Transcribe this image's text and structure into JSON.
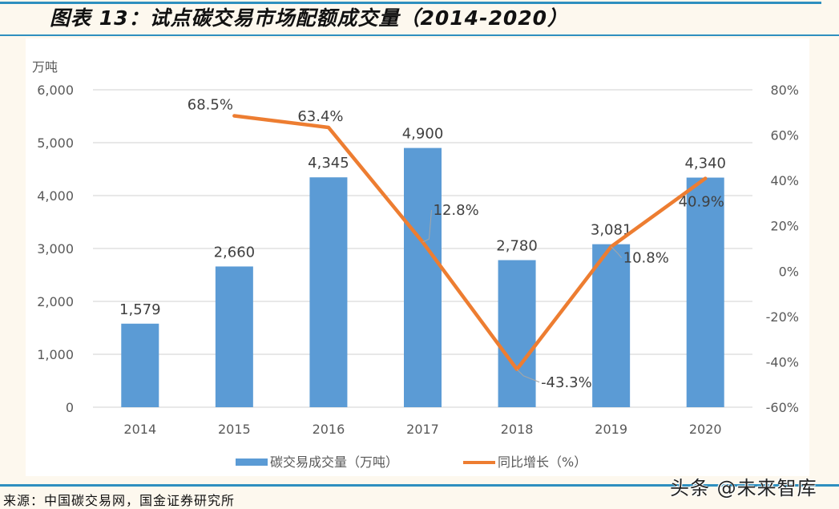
{
  "header": {
    "title": "图表 13：试点碳交易市场配额成交量（2014-2020）"
  },
  "footer": {
    "source": "来源：中国碳交易网，国金证券研究所",
    "watermark": "头条 @未来智库"
  },
  "colors": {
    "bar": "#5b9bd5",
    "line": "#ed7d31",
    "grid": "#d9d9d9",
    "tick_text": "#595959",
    "label_text": "#404040",
    "rule": "#2e8fbf",
    "page_bg": "#fdf8ee"
  },
  "chart_data": {
    "type": "bar+line",
    "title": "试点碳交易市场配额成交量（2014-2020）",
    "categories": [
      "2014",
      "2015",
      "2016",
      "2017",
      "2018",
      "2019",
      "2020"
    ],
    "series": [
      {
        "name": "碳交易成交量（万吨）",
        "type": "bar",
        "axis": "left",
        "values": [
          1579,
          2660,
          4345,
          4900,
          2780,
          3081,
          4340
        ],
        "labels": [
          "1,579",
          "2,660",
          "4,345",
          "4,900",
          "2,780",
          "3,081",
          "4,340"
        ]
      },
      {
        "name": "同比增长（%）",
        "type": "line",
        "axis": "right",
        "values": [
          null,
          68.5,
          63.4,
          12.8,
          -43.3,
          10.8,
          40.9
        ],
        "labels": [
          "",
          "68.5%",
          "63.4%",
          "12.8%",
          "-43.3%",
          "10.8%",
          "40.9%"
        ]
      }
    ],
    "ylabel_left": "万吨",
    "ylim_left": [
      0,
      6000
    ],
    "yticks_left": [
      "0",
      "1,000",
      "2,000",
      "3,000",
      "4,000",
      "5,000",
      "6,000"
    ],
    "ylim_right": [
      -60,
      80
    ],
    "yticks_right": [
      "-60%",
      "-40%",
      "-20%",
      "0%",
      "20%",
      "40%",
      "60%",
      "80%"
    ],
    "grid": true,
    "legend_position": "bottom"
  }
}
